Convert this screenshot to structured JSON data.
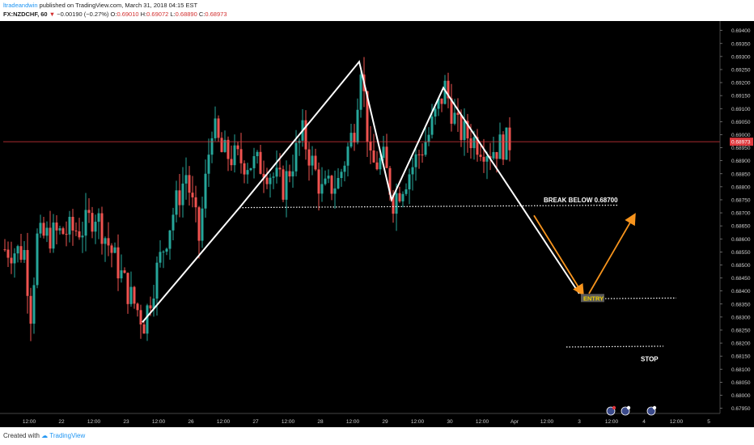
{
  "header": {
    "author": "ltradeandwin",
    "published": "published on TradingView.com, March 31, 2018 04:15 EST",
    "symbol": "FX:NZDCHF, 60",
    "arrow": "▼",
    "change": "−0.00190 (−0.27%)",
    "o_label": "O:",
    "o_value": "0.69010",
    "h_label": "H:",
    "h_value": "0.69072",
    "l_label": "L:",
    "l_value": "0.68890",
    "c_label": "C:",
    "c_value": "0.68973"
  },
  "footer": {
    "created": "Created with",
    "brand": "TradingView"
  },
  "chart_data": {
    "type": "candlestick",
    "symbol": "FX:NZDCHF",
    "interval": "60",
    "ylim": [
      0.6793,
      0.6943
    ],
    "y_ticks": [
      "0.69400",
      "0.69350",
      "0.69300",
      "0.69250",
      "0.69200",
      "0.69150",
      "0.69100",
      "0.69050",
      "0.69000",
      "0.68950",
      "0.68900",
      "0.68850",
      "0.68800",
      "0.68750",
      "0.68700",
      "0.68650",
      "0.68600",
      "0.68550",
      "0.68500",
      "0.68450",
      "0.68400",
      "0.68350",
      "0.68300",
      "0.68250",
      "0.68200",
      "0.68150",
      "0.68100",
      "0.68050",
      "0.68000",
      "0.67950"
    ],
    "x_ticks": [
      "12:00",
      "22",
      "12:00",
      "23",
      "12:00",
      "26",
      "12:00",
      "27",
      "12:00",
      "28",
      "12:00",
      "29",
      "12:00",
      "30",
      "12:00",
      "Apr",
      "12:00",
      "3",
      "12:00",
      "4",
      "12:00",
      "5"
    ],
    "x_tick_index": [
      8,
      18,
      28,
      38,
      48,
      58,
      68,
      78,
      88,
      98,
      108,
      118,
      128,
      138,
      148,
      158,
      168,
      178,
      188,
      198,
      208,
      218
    ],
    "last_price": "0.68973",
    "up_color": "#26a69a",
    "down_color": "#ef5350",
    "pattern_points": [
      {
        "t": 43,
        "p": 0.6828
      },
      {
        "t": 73,
        "p": 0.6872
      },
      {
        "t": 110,
        "p": 0.6928
      },
      {
        "t": 120,
        "p": 0.6875
      },
      {
        "t": 136,
        "p": 0.6918
      },
      {
        "t": 178,
        "p": 0.6839
      }
    ],
    "neckline": {
      "t1": 73,
      "t2": 190,
      "p1": 0.6872,
      "p2": 0.6872
    },
    "entry_line": {
      "t1": 179,
      "t2": 208,
      "p": 0.6837
    },
    "stop_line": {
      "t1": 174,
      "t2": 204,
      "p": 0.68185
    },
    "orange_arrows": [
      {
        "t1": 164,
        "p1": 0.6869,
        "t2": 179,
        "p2": 0.6839
      },
      {
        "t1": 181,
        "p1": 0.6839,
        "t2": 195,
        "p2": 0.6869
      }
    ],
    "annotations": {
      "break": "BREAK BELOW 0.68700",
      "entry": "ENTRY",
      "stop": "STOP"
    }
  }
}
